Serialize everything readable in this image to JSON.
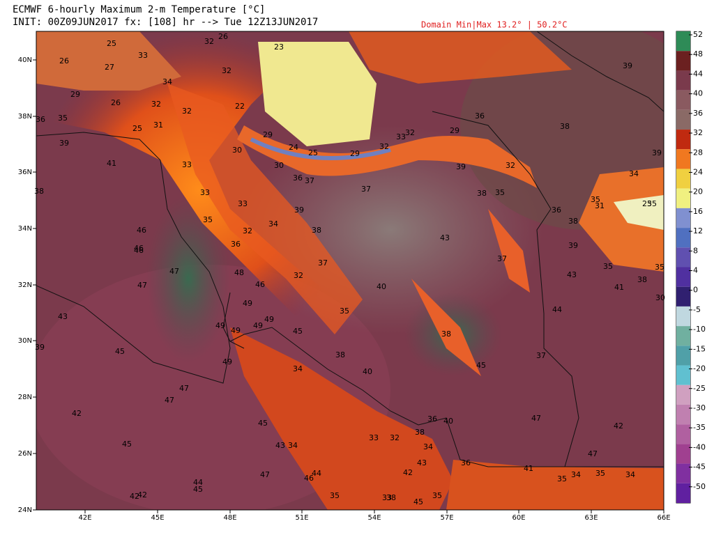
{
  "header": {
    "line1": "ECMWF 6-hourly Maximum 2-m Temperature [°C]",
    "line2": "INIT: 00Z09JUN2017 fx: [108] hr --> Tue 12Z13JUN2017",
    "domain": "Domain Min|Max 13.2° | 50.2°C"
  },
  "axes": {
    "lat": [
      "24N",
      "26N",
      "28N",
      "30N",
      "32N",
      "34N",
      "36N",
      "38N",
      "40N"
    ],
    "lon": [
      "42E",
      "45E",
      "48E",
      "51E",
      "54E",
      "57E",
      "60E",
      "63E",
      "66E"
    ]
  },
  "colorbar": {
    "ticks": [
      52,
      48,
      44,
      40,
      36,
      32,
      28,
      24,
      20,
      16,
      12,
      8,
      4,
      0,
      -5,
      -10,
      -15,
      -20,
      -25,
      -30,
      -35,
      -40,
      -45,
      -50
    ]
  },
  "map": {
    "labels": [
      25,
      26,
      32,
      23,
      33,
      26,
      27,
      39,
      32,
      34,
      29,
      26,
      32,
      22,
      36,
      35,
      32,
      31,
      36,
      38,
      25,
      29,
      29,
      33,
      32,
      39,
      30,
      24,
      25,
      29,
      32,
      39,
      41,
      33,
      30,
      39,
      32,
      34,
      36,
      37,
      37,
      38,
      33,
      38,
      35,
      35,
      31,
      25,
      35,
      33,
      39,
      36,
      38,
      35,
      34,
      46,
      38,
      32,
      43,
      36,
      39,
      46,
      46,
      37,
      37,
      35,
      35,
      47,
      48,
      43,
      32,
      38,
      47,
      46,
      40,
      41,
      49,
      30,
      44,
      35,
      43,
      49,
      49,
      49,
      49,
      45,
      38,
      39,
      45,
      38,
      37,
      45,
      49,
      34,
      40,
      47,
      47,
      42,
      47,
      36,
      40,
      45,
      42,
      38,
      33,
      32,
      45,
      43,
      34,
      34,
      47,
      36,
      43,
      41,
      42,
      44,
      47,
      46,
      35,
      34,
      35,
      34,
      44,
      45,
      35,
      42,
      42,
      33,
      38,
      45,
      35
    ]
  }
}
